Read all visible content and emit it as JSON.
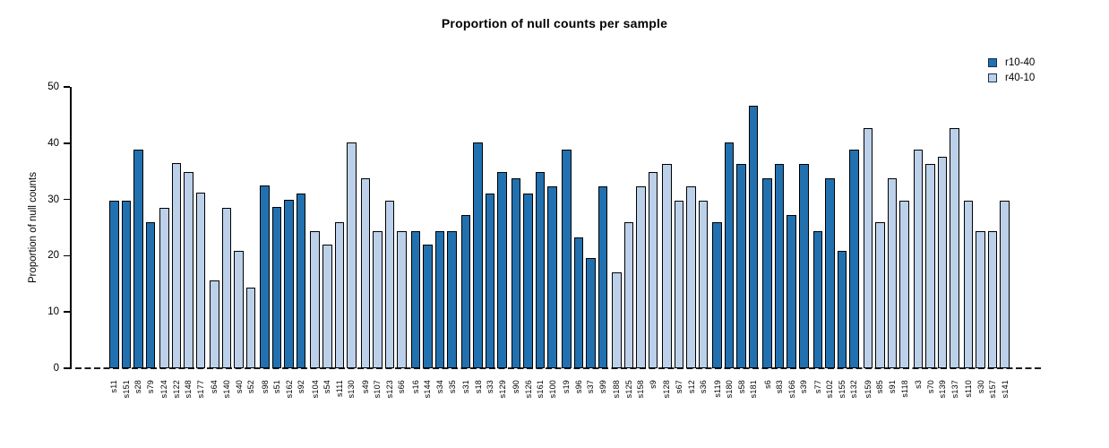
{
  "chart_data": {
    "type": "bar",
    "title": "Proportion of null counts per sample",
    "xlabel": "",
    "ylabel": "Proportion of null counts",
    "ylim": [
      0,
      50
    ],
    "yticks": [
      0,
      10,
      20,
      30,
      40,
      50
    ],
    "grid": false,
    "legend_position": "top-right",
    "bar_outline_color": "#000000",
    "zero_line_style": "dashed",
    "series": [
      {
        "name": "r10-40",
        "color": "#2171B0"
      },
      {
        "name": "r40-10",
        "color": "#BCD0EA"
      }
    ],
    "groups": [
      {
        "series": "r10-40",
        "bars": [
          {
            "label": "s11",
            "value": 29.8
          },
          {
            "label": "s151",
            "value": 29.8
          },
          {
            "label": "s28",
            "value": 38.8
          },
          {
            "label": "s79",
            "value": 25.9
          }
        ]
      },
      {
        "series": "r40-10",
        "bars": [
          {
            "label": "s124",
            "value": 28.5
          },
          {
            "label": "s122",
            "value": 36.4
          },
          {
            "label": "s148",
            "value": 34.9
          },
          {
            "label": "s177",
            "value": 31.2
          }
        ]
      },
      {
        "series": "r40-10",
        "bars": [
          {
            "label": "s64",
            "value": 15.6
          },
          {
            "label": "s140",
            "value": 28.5
          },
          {
            "label": "s40",
            "value": 20.8
          },
          {
            "label": "s52",
            "value": 14.4
          }
        ]
      },
      {
        "series": "r10-40",
        "bars": [
          {
            "label": "s98",
            "value": 32.5
          },
          {
            "label": "s51",
            "value": 28.6
          },
          {
            "label": "s162",
            "value": 29.9
          },
          {
            "label": "s92",
            "value": 31.1
          }
        ]
      },
      {
        "series": "r40-10",
        "bars": [
          {
            "label": "s104",
            "value": 24.4
          },
          {
            "label": "s54",
            "value": 22.0
          },
          {
            "label": "s111",
            "value": 25.9
          },
          {
            "label": "s130",
            "value": 40.1
          }
        ]
      },
      {
        "series": "r40-10",
        "bars": [
          {
            "label": "s49",
            "value": 33.7
          },
          {
            "label": "s107",
            "value": 24.4
          },
          {
            "label": "s123",
            "value": 29.7
          },
          {
            "label": "s66",
            "value": 24.4
          }
        ]
      },
      {
        "series": "r10-40",
        "bars": [
          {
            "label": "s16",
            "value": 24.4
          },
          {
            "label": "s144",
            "value": 22.0
          },
          {
            "label": "s34",
            "value": 24.4
          },
          {
            "label": "s35",
            "value": 24.4
          }
        ]
      },
      {
        "series": "r10-40",
        "bars": [
          {
            "label": "s31",
            "value": 27.2
          },
          {
            "label": "s18",
            "value": 40.1
          },
          {
            "label": "s33",
            "value": 31.1
          },
          {
            "label": "s129",
            "value": 34.9
          }
        ]
      },
      {
        "series": "r10-40",
        "bars": [
          {
            "label": "s90",
            "value": 33.7
          },
          {
            "label": "s126",
            "value": 31.1
          },
          {
            "label": "s161",
            "value": 34.9
          },
          {
            "label": "s100",
            "value": 32.4
          }
        ]
      },
      {
        "series": "r10-40",
        "bars": [
          {
            "label": "s19",
            "value": 38.8
          },
          {
            "label": "s96",
            "value": 23.3
          },
          {
            "label": "s37",
            "value": 19.6
          },
          {
            "label": "s99",
            "value": 32.4
          }
        ]
      },
      {
        "series": "r40-10",
        "bars": [
          {
            "label": "s188",
            "value": 17.0
          },
          {
            "label": "s125",
            "value": 25.9
          },
          {
            "label": "s158",
            "value": 32.4
          },
          {
            "label": "s9",
            "value": 34.9
          }
        ]
      },
      {
        "series": "r40-10",
        "bars": [
          {
            "label": "s128",
            "value": 36.3
          },
          {
            "label": "s67",
            "value": 29.7
          },
          {
            "label": "s12",
            "value": 32.4
          },
          {
            "label": "s36",
            "value": 29.7
          }
        ]
      },
      {
        "series": "r10-40",
        "bars": [
          {
            "label": "s119",
            "value": 25.9
          },
          {
            "label": "s180",
            "value": 40.1
          },
          {
            "label": "s58",
            "value": 36.3
          },
          {
            "label": "s181",
            "value": 46.7
          }
        ]
      },
      {
        "series": "r10-40",
        "bars": [
          {
            "label": "s6",
            "value": 33.7
          },
          {
            "label": "s83",
            "value": 36.3
          },
          {
            "label": "s166",
            "value": 27.2
          },
          {
            "label": "s39",
            "value": 36.3
          }
        ]
      },
      {
        "series": "r10-40",
        "bars": [
          {
            "label": "s77",
            "value": 24.4
          },
          {
            "label": "s102",
            "value": 33.7
          },
          {
            "label": "s155",
            "value": 20.8
          },
          {
            "label": "s132",
            "value": 38.9
          }
        ]
      },
      {
        "series": "r40-10",
        "bars": [
          {
            "label": "s159",
            "value": 42.7
          },
          {
            "label": "s85",
            "value": 25.9
          },
          {
            "label": "s91",
            "value": 33.7
          },
          {
            "label": "s118",
            "value": 29.7
          }
        ]
      },
      {
        "series": "r40-10",
        "bars": [
          {
            "label": "s3",
            "value": 38.9
          },
          {
            "label": "s70",
            "value": 36.3
          },
          {
            "label": "s139",
            "value": 37.6
          },
          {
            "label": "s137",
            "value": 42.7
          }
        ]
      },
      {
        "series": "r40-10",
        "bars": [
          {
            "label": "s110",
            "value": 29.7
          },
          {
            "label": "s30",
            "value": 24.4
          },
          {
            "label": "s157",
            "value": 24.4
          },
          {
            "label": "s141",
            "value": 29.7
          }
        ]
      }
    ]
  }
}
